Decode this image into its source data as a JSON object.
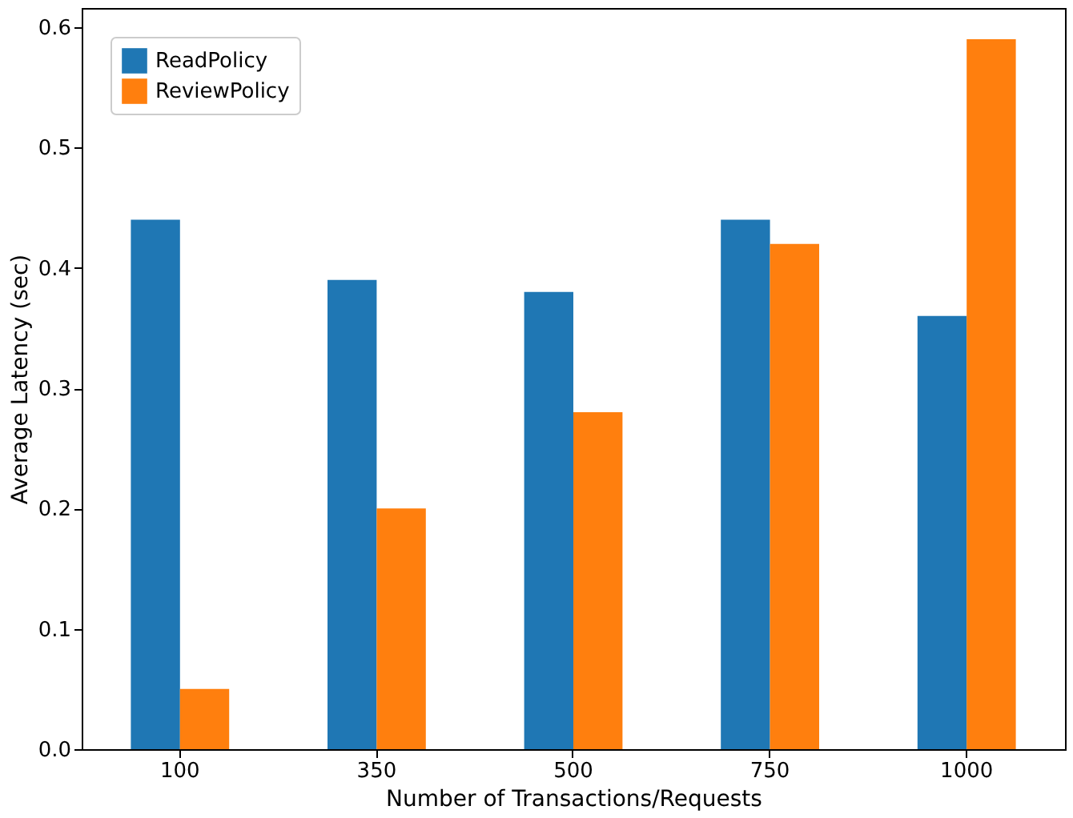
{
  "chart_data": {
    "type": "bar",
    "xlabel": "Number of Transactions/Requests",
    "ylabel": "Average Latency (sec)",
    "categories": [
      "100",
      "350",
      "500",
      "750",
      "1000"
    ],
    "series": [
      {
        "name": "ReadPolicy",
        "color": "#1f77b4",
        "values": [
          0.44,
          0.39,
          0.38,
          0.44,
          0.36
        ]
      },
      {
        "name": "ReviewPolicy",
        "color": "#ff7f0e",
        "values": [
          0.05,
          0.2,
          0.28,
          0.42,
          0.59
        ]
      }
    ],
    "ylim": [
      0,
      0.616
    ],
    "yticks": [
      {
        "value": 0,
        "label": "0.0"
      },
      0.1,
      0.2,
      0.3,
      0.4,
      0.5,
      0.6
    ],
    "legend": "top left",
    "grid": false
  }
}
